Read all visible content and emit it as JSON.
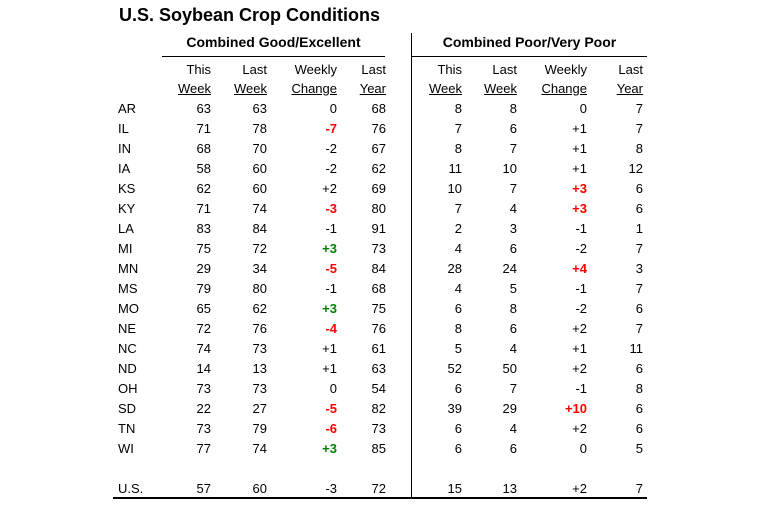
{
  "title": "U.S. Soybean Crop Conditions",
  "colors": {
    "red": "#ff0000",
    "green": "#008000",
    "black": "#000000"
  },
  "sections": [
    {
      "header": "Combined Good/Excellent",
      "columns_line1": [
        "This",
        "Last",
        "Weekly",
        "Last"
      ],
      "columns_line2": [
        "Week",
        "Week",
        "Change",
        "Year"
      ]
    },
    {
      "header": "Combined Poor/Very Poor",
      "columns_line1": [
        "This",
        "Last",
        "Weekly",
        "Last"
      ],
      "columns_line2": [
        "Week",
        "Week",
        "Change",
        "Year"
      ]
    }
  ],
  "rows": [
    {
      "state": "AR",
      "good_excellent": {
        "this_week": "63",
        "last_week": "63",
        "weekly_change": "0",
        "change_color": "black",
        "last_year": "68"
      },
      "poor_very_poor": {
        "this_week": "8",
        "last_week": "8",
        "weekly_change": "0",
        "change_color": "black",
        "last_year": "7"
      }
    },
    {
      "state": "IL",
      "good_excellent": {
        "this_week": "71",
        "last_week": "78",
        "weekly_change": "-7",
        "change_color": "red",
        "last_year": "76"
      },
      "poor_very_poor": {
        "this_week": "7",
        "last_week": "6",
        "weekly_change": "+1",
        "change_color": "black",
        "last_year": "7"
      }
    },
    {
      "state": "IN",
      "good_excellent": {
        "this_week": "68",
        "last_week": "70",
        "weekly_change": "-2",
        "change_color": "black",
        "last_year": "67"
      },
      "poor_very_poor": {
        "this_week": "8",
        "last_week": "7",
        "weekly_change": "+1",
        "change_color": "black",
        "last_year": "8"
      }
    },
    {
      "state": "IA",
      "good_excellent": {
        "this_week": "58",
        "last_week": "60",
        "weekly_change": "-2",
        "change_color": "black",
        "last_year": "62"
      },
      "poor_very_poor": {
        "this_week": "11",
        "last_week": "10",
        "weekly_change": "+1",
        "change_color": "black",
        "last_year": "12"
      }
    },
    {
      "state": "KS",
      "good_excellent": {
        "this_week": "62",
        "last_week": "60",
        "weekly_change": "+2",
        "change_color": "black",
        "last_year": "69"
      },
      "poor_very_poor": {
        "this_week": "10",
        "last_week": "7",
        "weekly_change": "+3",
        "change_color": "red",
        "last_year": "6"
      }
    },
    {
      "state": "KY",
      "good_excellent": {
        "this_week": "71",
        "last_week": "74",
        "weekly_change": "-3",
        "change_color": "red",
        "last_year": "80"
      },
      "poor_very_poor": {
        "this_week": "7",
        "last_week": "4",
        "weekly_change": "+3",
        "change_color": "red",
        "last_year": "6"
      }
    },
    {
      "state": "LA",
      "good_excellent": {
        "this_week": "83",
        "last_week": "84",
        "weekly_change": "-1",
        "change_color": "black",
        "last_year": "91"
      },
      "poor_very_poor": {
        "this_week": "2",
        "last_week": "3",
        "weekly_change": "-1",
        "change_color": "black",
        "last_year": "1"
      }
    },
    {
      "state": "MI",
      "good_excellent": {
        "this_week": "75",
        "last_week": "72",
        "weekly_change": "+3",
        "change_color": "green",
        "last_year": "73"
      },
      "poor_very_poor": {
        "this_week": "4",
        "last_week": "6",
        "weekly_change": "-2",
        "change_color": "black",
        "last_year": "7"
      }
    },
    {
      "state": "MN",
      "good_excellent": {
        "this_week": "29",
        "last_week": "34",
        "weekly_change": "-5",
        "change_color": "red",
        "last_year": "84"
      },
      "poor_very_poor": {
        "this_week": "28",
        "last_week": "24",
        "weekly_change": "+4",
        "change_color": "red",
        "last_year": "3"
      }
    },
    {
      "state": "MS",
      "good_excellent": {
        "this_week": "79",
        "last_week": "80",
        "weekly_change": "-1",
        "change_color": "black",
        "last_year": "68"
      },
      "poor_very_poor": {
        "this_week": "4",
        "last_week": "5",
        "weekly_change": "-1",
        "change_color": "black",
        "last_year": "7"
      }
    },
    {
      "state": "MO",
      "good_excellent": {
        "this_week": "65",
        "last_week": "62",
        "weekly_change": "+3",
        "change_color": "green",
        "last_year": "75"
      },
      "poor_very_poor": {
        "this_week": "6",
        "last_week": "8",
        "weekly_change": "-2",
        "change_color": "black",
        "last_year": "6"
      }
    },
    {
      "state": "NE",
      "good_excellent": {
        "this_week": "72",
        "last_week": "76",
        "weekly_change": "-4",
        "change_color": "red",
        "last_year": "76"
      },
      "poor_very_poor": {
        "this_week": "8",
        "last_week": "6",
        "weekly_change": "+2",
        "change_color": "black",
        "last_year": "7"
      }
    },
    {
      "state": "NC",
      "good_excellent": {
        "this_week": "74",
        "last_week": "73",
        "weekly_change": "+1",
        "change_color": "black",
        "last_year": "61"
      },
      "poor_very_poor": {
        "this_week": "5",
        "last_week": "4",
        "weekly_change": "+1",
        "change_color": "black",
        "last_year": "11"
      }
    },
    {
      "state": "ND",
      "good_excellent": {
        "this_week": "14",
        "last_week": "13",
        "weekly_change": "+1",
        "change_color": "black",
        "last_year": "63"
      },
      "poor_very_poor": {
        "this_week": "52",
        "last_week": "50",
        "weekly_change": "+2",
        "change_color": "black",
        "last_year": "6"
      }
    },
    {
      "state": "OH",
      "good_excellent": {
        "this_week": "73",
        "last_week": "73",
        "weekly_change": "0",
        "change_color": "black",
        "last_year": "54"
      },
      "poor_very_poor": {
        "this_week": "6",
        "last_week": "7",
        "weekly_change": "-1",
        "change_color": "black",
        "last_year": "8"
      }
    },
    {
      "state": "SD",
      "good_excellent": {
        "this_week": "22",
        "last_week": "27",
        "weekly_change": "-5",
        "change_color": "red",
        "last_year": "82"
      },
      "poor_very_poor": {
        "this_week": "39",
        "last_week": "29",
        "weekly_change": "+10",
        "change_color": "red",
        "last_year": "6"
      }
    },
    {
      "state": "TN",
      "good_excellent": {
        "this_week": "73",
        "last_week": "79",
        "weekly_change": "-6",
        "change_color": "red",
        "last_year": "73"
      },
      "poor_very_poor": {
        "this_week": "6",
        "last_week": "4",
        "weekly_change": "+2",
        "change_color": "black",
        "last_year": "6"
      }
    },
    {
      "state": "WI",
      "good_excellent": {
        "this_week": "77",
        "last_week": "74",
        "weekly_change": "+3",
        "change_color": "green",
        "last_year": "85"
      },
      "poor_very_poor": {
        "this_week": "6",
        "last_week": "6",
        "weekly_change": "0",
        "change_color": "black",
        "last_year": "5"
      }
    }
  ],
  "us_row": {
    "state": "U.S.",
    "good_excellent": {
      "this_week": "57",
      "last_week": "60",
      "weekly_change": "-3",
      "change_color": "black",
      "last_year": "72"
    },
    "poor_very_poor": {
      "this_week": "15",
      "last_week": "13",
      "weekly_change": "+2",
      "change_color": "black",
      "last_year": "7"
    }
  },
  "chart_data": {
    "type": "table",
    "title": "U.S. Soybean Crop Conditions",
    "sections": [
      "Combined Good/Excellent",
      "Combined Poor/Very Poor"
    ],
    "columns": [
      "This Week",
      "Last Week",
      "Weekly Change",
      "Last Year"
    ],
    "states": [
      "AR",
      "IL",
      "IN",
      "IA",
      "KS",
      "KY",
      "LA",
      "MI",
      "MN",
      "MS",
      "MO",
      "NE",
      "NC",
      "ND",
      "OH",
      "SD",
      "TN",
      "WI",
      "U.S."
    ],
    "good_excellent": {
      "this_week": [
        63,
        71,
        68,
        58,
        62,
        71,
        83,
        75,
        29,
        79,
        65,
        72,
        74,
        14,
        73,
        22,
        73,
        77,
        57
      ],
      "last_week": [
        63,
        78,
        70,
        60,
        60,
        74,
        84,
        72,
        34,
        80,
        62,
        76,
        73,
        13,
        73,
        27,
        79,
        74,
        60
      ],
      "weekly_change": [
        0,
        -7,
        -2,
        -2,
        2,
        -3,
        -1,
        3,
        -5,
        -1,
        3,
        -4,
        1,
        1,
        0,
        -5,
        -6,
        3,
        -3
      ],
      "last_year": [
        68,
        76,
        67,
        62,
        69,
        80,
        91,
        73,
        84,
        68,
        75,
        76,
        61,
        63,
        54,
        82,
        73,
        85,
        72
      ]
    },
    "poor_very_poor": {
      "this_week": [
        8,
        7,
        8,
        11,
        10,
        7,
        2,
        4,
        28,
        4,
        6,
        8,
        5,
        52,
        6,
        39,
        6,
        6,
        15
      ],
      "last_week": [
        8,
        6,
        7,
        10,
        7,
        4,
        3,
        6,
        24,
        5,
        8,
        6,
        4,
        50,
        7,
        29,
        4,
        6,
        13
      ],
      "weekly_change": [
        0,
        1,
        1,
        1,
        3,
        3,
        -1,
        -2,
        4,
        -1,
        -2,
        2,
        1,
        2,
        -1,
        10,
        2,
        0,
        2
      ],
      "last_year": [
        7,
        7,
        8,
        12,
        6,
        6,
        1,
        7,
        3,
        7,
        6,
        7,
        11,
        6,
        8,
        6,
        6,
        5,
        7
      ]
    },
    "highlight_rule": "weekly changes with |value| >= 3 shown bold; red = deterioration, green = improvement"
  }
}
